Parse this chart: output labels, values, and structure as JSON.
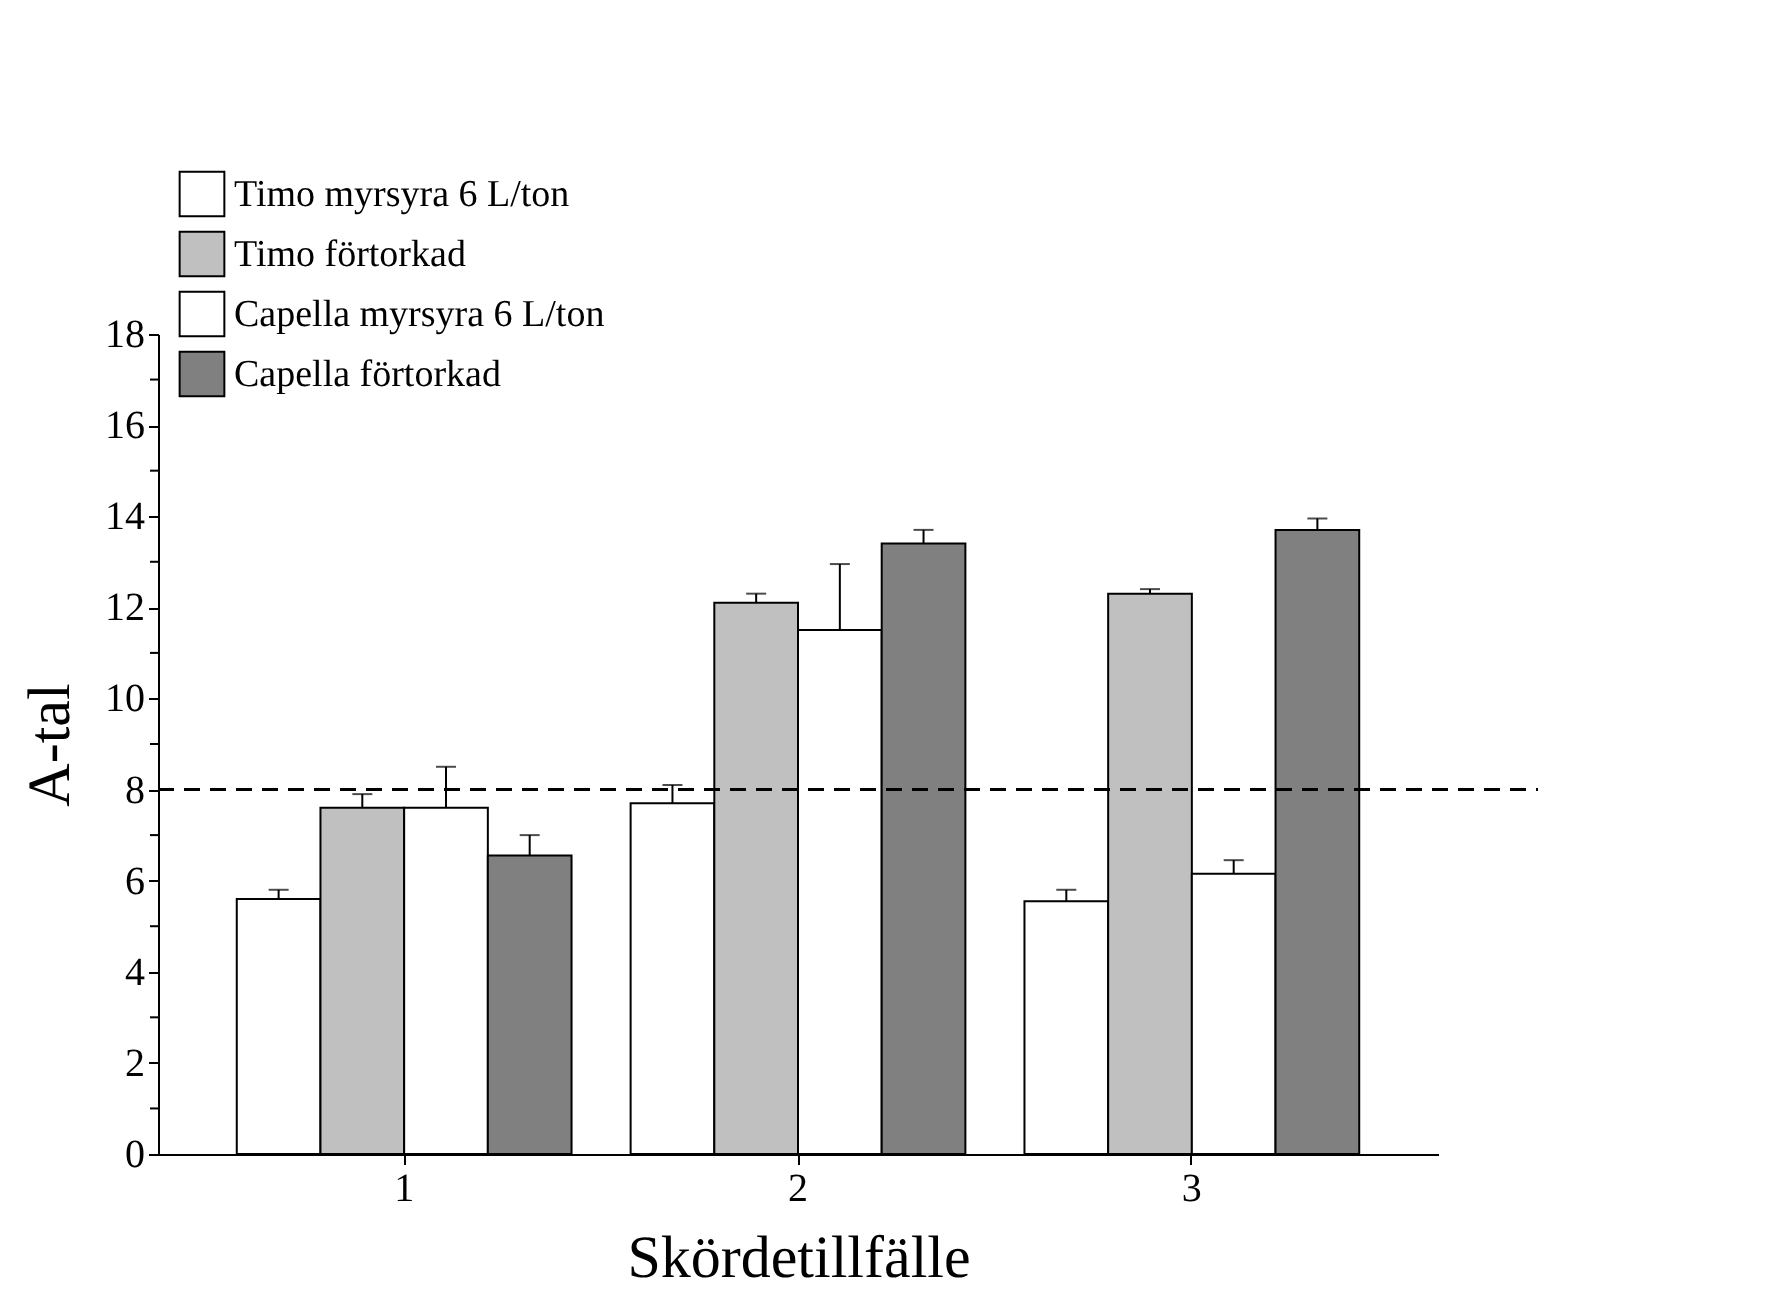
{
  "chart_data": {
    "type": "bar",
    "xlabel": "Skördetillfälle",
    "ylabel": "A-tal",
    "categories": [
      "1",
      "2",
      "3"
    ],
    "series": [
      {
        "name": "Timo myrsyra 6 L/ton",
        "color": "#ffffff",
        "values": [
          5.6,
          7.7,
          5.55
        ],
        "errors": [
          [
            5.6,
            5.8
          ],
          [
            7.7,
            8.1
          ],
          [
            5.55,
            5.8
          ]
        ]
      },
      {
        "name": "Timo förtorkad",
        "color": "#c0c0c0",
        "values": [
          7.6,
          12.1,
          12.3
        ],
        "errors": [
          [
            7.6,
            7.9
          ],
          [
            12.1,
            12.3
          ],
          [
            12.3,
            12.4
          ]
        ]
      },
      {
        "name": "Capella myrsyra 6 L/ton",
        "color": "#ffffff",
        "values": [
          7.6,
          11.5,
          6.15
        ],
        "errors": [
          [
            7.6,
            8.5
          ],
          [
            11.5,
            12.95
          ],
          [
            6.15,
            6.45
          ]
        ]
      },
      {
        "name": "Capella förtorkad",
        "color": "#808080",
        "values": [
          6.55,
          13.4,
          13.7
        ],
        "errors": [
          [
            6.55,
            7.0
          ],
          [
            13.4,
            13.7
          ],
          [
            13.7,
            13.95
          ]
        ]
      }
    ],
    "ylim": [
      0,
      18
    ],
    "yticks": [
      0,
      {
        "value": 1,
        "label": null
      },
      2,
      {
        "value": 3,
        "label": null
      },
      4,
      {
        "value": 5,
        "label": null
      },
      6,
      {
        "value": 7,
        "label": null
      },
      8,
      {
        "value": 9,
        "label": null
      },
      10,
      {
        "value": 11,
        "label": null
      },
      12,
      {
        "value": 13,
        "label": null
      },
      14,
      {
        "value": 15,
        "label": null
      },
      16,
      {
        "value": 17,
        "label": null
      },
      18
    ],
    "ref_lines": [
      {
        "axis": "y",
        "value": 8,
        "label": null,
        "color": "#000000",
        "line_style": "dashed"
      }
    ],
    "grid": false,
    "legend": "top left"
  }
}
